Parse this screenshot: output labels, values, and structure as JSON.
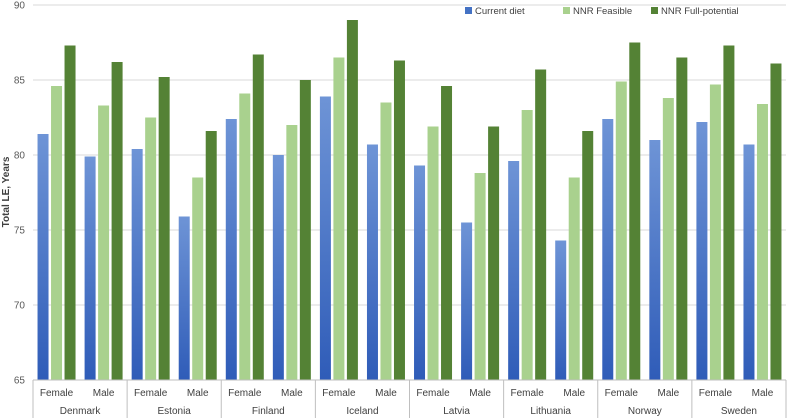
{
  "chart_data": {
    "type": "bar",
    "ylabel": "Total LE, Years",
    "ylim": [
      65,
      90
    ],
    "yticks": [
      65,
      70,
      75,
      80,
      85,
      90
    ],
    "groups": [
      "Denmark",
      "Estonia",
      "Finland",
      "Iceland",
      "Latvia",
      "Lithuania",
      "Norway",
      "Sweden"
    ],
    "subgroups": [
      "Female",
      "Male"
    ],
    "legend_position": "top-right",
    "series": [
      {
        "name": "Current diet",
        "color": "#4472C4",
        "values": [
          81.4,
          79.9,
          80.4,
          75.9,
          82.4,
          80.0,
          83.9,
          80.7,
          79.3,
          75.5,
          79.6,
          74.3,
          82.4,
          81.0,
          82.2,
          80.7
        ]
      },
      {
        "name": "NNR Feasible",
        "color": "#A9D18E",
        "values": [
          84.6,
          83.3,
          82.5,
          78.5,
          84.1,
          82.0,
          86.5,
          83.5,
          81.9,
          78.8,
          83.0,
          78.5,
          84.9,
          83.8,
          84.7,
          83.4
        ]
      },
      {
        "name": "NNR Full-potential",
        "color": "#548235",
        "values": [
          87.3,
          86.2,
          85.2,
          81.6,
          86.7,
          85.0,
          89.0,
          86.3,
          84.6,
          81.9,
          85.7,
          81.6,
          87.5,
          86.5,
          87.3,
          86.1
        ]
      }
    ]
  }
}
